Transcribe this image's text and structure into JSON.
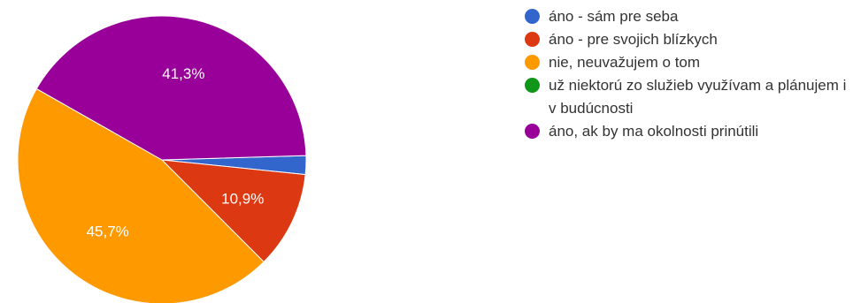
{
  "chart_data": {
    "type": "pie",
    "title": "",
    "slices": [
      {
        "label": "áno - sám pre seba",
        "value": 2.1,
        "color": "#3366CC"
      },
      {
        "label": "áno - pre svojich blízkych",
        "value": 10.9,
        "data_label": "10,9%",
        "color": "#DC3912"
      },
      {
        "label": "nie, neuvažujem o tom",
        "value": 45.7,
        "data_label": "45,7%",
        "color": "#FF9900"
      },
      {
        "label": "už niektorú zo služieb využívam a plánujem i v budúcnosti",
        "value": 0,
        "color": "#109618"
      },
      {
        "label": "áno, ak by ma okolnosti prinútili",
        "value": 41.3,
        "data_label": "41,3%",
        "color": "#990099"
      }
    ],
    "legend_position": "right"
  }
}
